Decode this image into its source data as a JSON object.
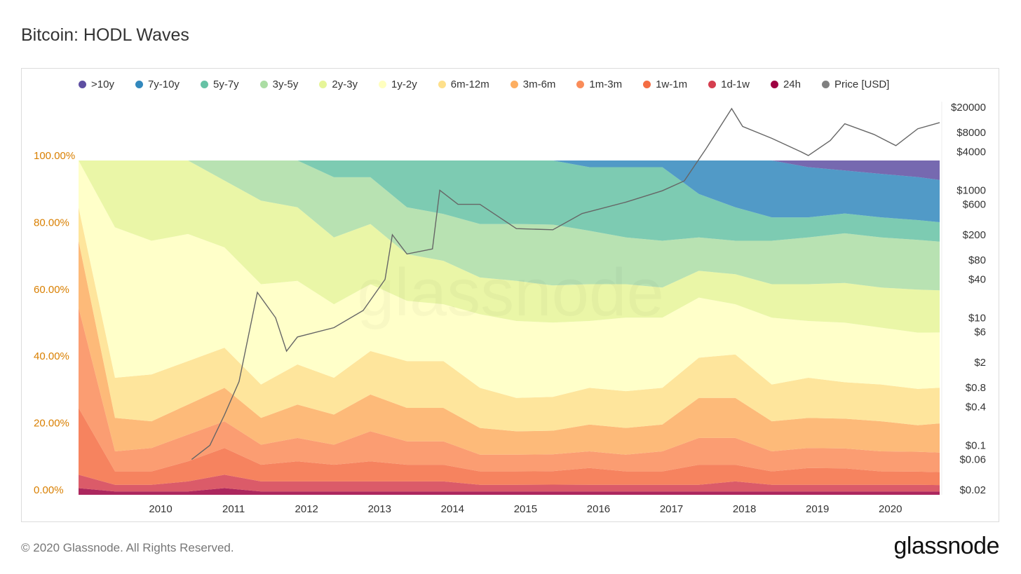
{
  "header": {
    "title": "Bitcoin: HODL Waves"
  },
  "footer": {
    "copyright": "© 2020 Glassnode. All Rights Reserved.",
    "brand": "glassnode"
  },
  "watermark": "glassnode",
  "chart_data": {
    "type": "area",
    "stacked": true,
    "title": "Bitcoin: HODL Waves",
    "legend_position": "top",
    "x_ticks": [
      "2010",
      "2011",
      "2012",
      "2013",
      "2014",
      "2015",
      "2016",
      "2017",
      "2018",
      "2019",
      "2020"
    ],
    "y_left": {
      "label": "",
      "ticks": [
        "0.00%",
        "20.00%",
        "40.00%",
        "60.00%",
        "80.00%",
        "100.00%"
      ],
      "range": [
        0,
        100
      ]
    },
    "y_right": {
      "label": "",
      "scale": "log",
      "ticks": [
        "$0.02",
        "$0.06",
        "$0.1",
        "$0.4",
        "$0.8",
        "$2",
        "$6",
        "$10",
        "$40",
        "$80",
        "$200",
        "$600",
        "$1000",
        "$4000",
        "$8000",
        "$20000"
      ]
    },
    "x": [
      2009.0,
      2009.5,
      2010.0,
      2010.5,
      2011.0,
      2011.5,
      2012.0,
      2012.5,
      2013.0,
      2013.5,
      2014.0,
      2014.5,
      2015.0,
      2015.5,
      2016.0,
      2016.5,
      2017.0,
      2017.5,
      2018.0,
      2018.5,
      2019.0,
      2019.5,
      2020.0,
      2020.5,
      2020.8
    ],
    "series": [
      {
        "name": "24h",
        "color": "#9e0142",
        "values": [
          2,
          1,
          1,
          1,
          2,
          1,
          1,
          1,
          1,
          1,
          1,
          1,
          1,
          1,
          1,
          1,
          1,
          1,
          1,
          1,
          1,
          1,
          1,
          1,
          1
        ]
      },
      {
        "name": "1d-1w",
        "color": "#d53e4f",
        "values": [
          4,
          2,
          2,
          3,
          4,
          3,
          3,
          3,
          3,
          3,
          3,
          2,
          2,
          2,
          2,
          2,
          2,
          2,
          3,
          2,
          2,
          2,
          2,
          2,
          2
        ]
      },
      {
        "name": "1w-1m",
        "color": "#f46d43",
        "values": [
          20,
          4,
          4,
          6,
          8,
          5,
          6,
          5,
          6,
          5,
          5,
          4,
          4,
          4,
          5,
          4,
          4,
          6,
          5,
          4,
          5,
          5,
          4,
          4,
          4
        ]
      },
      {
        "name": "1m-3m",
        "color": "#fa8c59",
        "values": [
          30,
          6,
          7,
          8,
          8,
          6,
          7,
          6,
          9,
          7,
          7,
          5,
          5,
          5,
          5,
          5,
          6,
          8,
          8,
          6,
          6,
          6,
          6,
          6,
          6
        ]
      },
      {
        "name": "3m-6m",
        "color": "#fdae61",
        "values": [
          20,
          10,
          8,
          9,
          10,
          8,
          10,
          9,
          11,
          10,
          10,
          8,
          7,
          7,
          8,
          8,
          8,
          12,
          12,
          9,
          9,
          9,
          9,
          8,
          9
        ]
      },
      {
        "name": "6m-12m",
        "color": "#fee08b",
        "values": [
          10,
          12,
          14,
          13,
          12,
          10,
          12,
          11,
          13,
          14,
          14,
          12,
          10,
          10,
          11,
          11,
          11,
          12,
          13,
          11,
          12,
          11,
          11,
          11,
          11
        ]
      },
      {
        "name": "1y-2y",
        "color": "#ffffbf",
        "values": [
          14,
          45,
          40,
          38,
          30,
          30,
          25,
          22,
          20,
          18,
          17,
          22,
          23,
          22,
          20,
          22,
          21,
          18,
          15,
          20,
          17,
          18,
          17,
          17,
          17
        ]
      },
      {
        "name": "2y-3y",
        "color": "#e6f598",
        "values": [
          0,
          20,
          24,
          22,
          20,
          25,
          22,
          20,
          18,
          14,
          13,
          11,
          12,
          11,
          11,
          10,
          9,
          8,
          9,
          10,
          11,
          12,
          12,
          13,
          13
        ]
      },
      {
        "name": "3y-5y",
        "color": "#abdda4",
        "values": [
          0,
          0,
          0,
          0,
          6,
          12,
          14,
          18,
          14,
          14,
          14,
          16,
          17,
          18,
          16,
          14,
          14,
          10,
          10,
          13,
          14,
          15,
          15,
          15,
          15
        ]
      },
      {
        "name": "5y-7y",
        "color": "#66c2a5",
        "values": [
          0,
          0,
          0,
          0,
          0,
          0,
          0,
          5,
          5,
          14,
          16,
          19,
          19,
          19,
          19,
          21,
          22,
          13,
          10,
          7,
          6,
          6,
          6,
          6,
          6
        ]
      },
      {
        "name": "7y-10y",
        "color": "#3288bd",
        "values": [
          0,
          0,
          0,
          0,
          0,
          0,
          0,
          0,
          0,
          0,
          0,
          0,
          0,
          0,
          2,
          2,
          2,
          10,
          14,
          17,
          15,
          13,
          13,
          13,
          13
        ]
      },
      {
        "name": ">10y",
        "color": "#5e4fa2",
        "values": [
          0,
          0,
          0,
          0,
          0,
          0,
          0,
          0,
          0,
          0,
          0,
          0,
          0,
          0,
          0,
          0,
          0,
          0,
          0,
          0,
          2,
          3,
          4,
          5,
          6
        ]
      }
    ],
    "price_series": {
      "name": "Price [USD]",
      "color": "#808080",
      "x": [
        2010.55,
        2010.8,
        2011.0,
        2011.2,
        2011.45,
        2011.7,
        2011.85,
        2012.0,
        2012.5,
        2012.9,
        2013.2,
        2013.3,
        2013.5,
        2013.85,
        2013.95,
        2014.2,
        2014.5,
        2015.0,
        2015.5,
        2015.9,
        2016.5,
        2017.0,
        2017.3,
        2017.6,
        2017.95,
        2018.1,
        2018.5,
        2018.9,
        2019.0,
        2019.3,
        2019.5,
        2019.9,
        2020.2,
        2020.5,
        2020.8
      ],
      "values": [
        0.06,
        0.1,
        0.3,
        1,
        25,
        10,
        3,
        5,
        7,
        13,
        40,
        200,
        100,
        120,
        1000,
        600,
        600,
        250,
        240,
        430,
        650,
        980,
        1400,
        4500,
        19000,
        10000,
        6500,
        4000,
        3500,
        6000,
        11000,
        7500,
        5000,
        9200,
        11500
      ]
    }
  }
}
